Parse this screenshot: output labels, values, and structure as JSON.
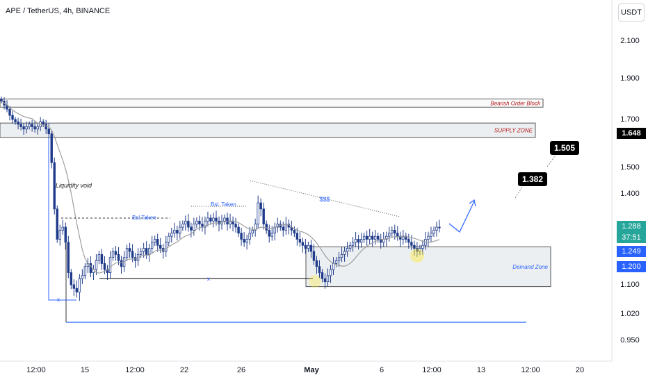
{
  "header": {
    "title": "APE / TetherUS, 4h, BINANCE",
    "unit": "USDT"
  },
  "axis": {
    "y_ticks": [
      "2.100",
      "1.900",
      "1.700",
      "1.500",
      "1.400",
      "1.100",
      "1.020",
      "0.950"
    ],
    "x_ticks": [
      "12:00",
      "15",
      "12:00",
      "22",
      "26",
      "May",
      "6",
      "12:00",
      "13",
      "12:00",
      "20"
    ]
  },
  "price_tags": {
    "tag_1648": "1.648",
    "tag_1288": "1.288",
    "countdown": "37:51",
    "tag_1249": "1.249",
    "tag_1200": "1.200"
  },
  "callouts": {
    "target_1": "1.382",
    "target_2": "1.505"
  },
  "annotations": {
    "bearish_ob": "Bearish Order Block",
    "supply_zone": "SUPPLY ZONE",
    "liquidity_void": "Liquidity void",
    "bsl_taken_1": "Bsl.Taken",
    "bsl_taken_2": "Bsl. Taken",
    "sss": "$$$",
    "demand_zone": "Demand Zone",
    "x_mark_1": "x",
    "x_mark_2": "x"
  },
  "colors": {
    "bull": "#ffffff",
    "bear": "#1e3a8a",
    "wick": "#1e3a8a",
    "ma": "#9e9e9e",
    "annot_blue": "#2962ff",
    "zone_red_text": "#b71c1c",
    "zone_fill": "#eceff1",
    "tag_teal": "#26a69a",
    "tag_blue": "#2962ff",
    "tag_dark": "#000000"
  },
  "chart_data": {
    "type": "candlestick",
    "title": "APE / TetherUS, 4h, BINANCE",
    "y_unit": "USDT",
    "zones": [
      {
        "name": "Bearish Order Block",
        "low": 1.76,
        "high": 1.8
      },
      {
        "name": "SUPPLY ZONE",
        "low": 1.625,
        "high": 1.685
      },
      {
        "name": "Demand Zone",
        "low": 1.095,
        "high": 1.225
      }
    ],
    "levels": [
      {
        "label": "1.382",
        "value": 1.382
      },
      {
        "label": "1.505",
        "value": 1.505
      }
    ],
    "last_price": 1.288,
    "ma_last": 1.249,
    "series": {
      "close": [
        1.79,
        1.77,
        1.75,
        1.72,
        1.7,
        1.69,
        1.68,
        1.67,
        1.66,
        1.67,
        1.68,
        1.67,
        1.66,
        1.67,
        1.69,
        1.68,
        1.66,
        1.64,
        1.52,
        1.35,
        1.25,
        1.28,
        1.29,
        1.24,
        1.14,
        1.1,
        1.09,
        1.08,
        1.12,
        1.13,
        1.16,
        1.17,
        1.14,
        1.15,
        1.18,
        1.2,
        1.17,
        1.15,
        1.14,
        1.19,
        1.21,
        1.2,
        1.18,
        1.16,
        1.19,
        1.22,
        1.21,
        1.19,
        1.18,
        1.2,
        1.21,
        1.22,
        1.2,
        1.22,
        1.24,
        1.25,
        1.23,
        1.22,
        1.21,
        1.24,
        1.26,
        1.27,
        1.28,
        1.27,
        1.29,
        1.3,
        1.31,
        1.29,
        1.28,
        1.3,
        1.31,
        1.3,
        1.29,
        1.31,
        1.32,
        1.31,
        1.32,
        1.31,
        1.3,
        1.31,
        1.32,
        1.3,
        1.31,
        1.3,
        1.29,
        1.27,
        1.25,
        1.24,
        1.25,
        1.27,
        1.28,
        1.3,
        1.37,
        1.35,
        1.3,
        1.28,
        1.26,
        1.27,
        1.29,
        1.3,
        1.29,
        1.28,
        1.3,
        1.29,
        1.28,
        1.27,
        1.25,
        1.24,
        1.23,
        1.22,
        1.23,
        1.21,
        1.18,
        1.16,
        1.14,
        1.12,
        1.11,
        1.13,
        1.15,
        1.17,
        1.18,
        1.19,
        1.2,
        1.21,
        1.22,
        1.23,
        1.24,
        1.25,
        1.24,
        1.25,
        1.26,
        1.25,
        1.26,
        1.25,
        1.26,
        1.25,
        1.24,
        1.25,
        1.26,
        1.27,
        1.28,
        1.27,
        1.26,
        1.25,
        1.26,
        1.25,
        1.24,
        1.23,
        1.22,
        1.21,
        1.22,
        1.23,
        1.25,
        1.26,
        1.27,
        1.28,
        1.29,
        1.288
      ]
    }
  }
}
